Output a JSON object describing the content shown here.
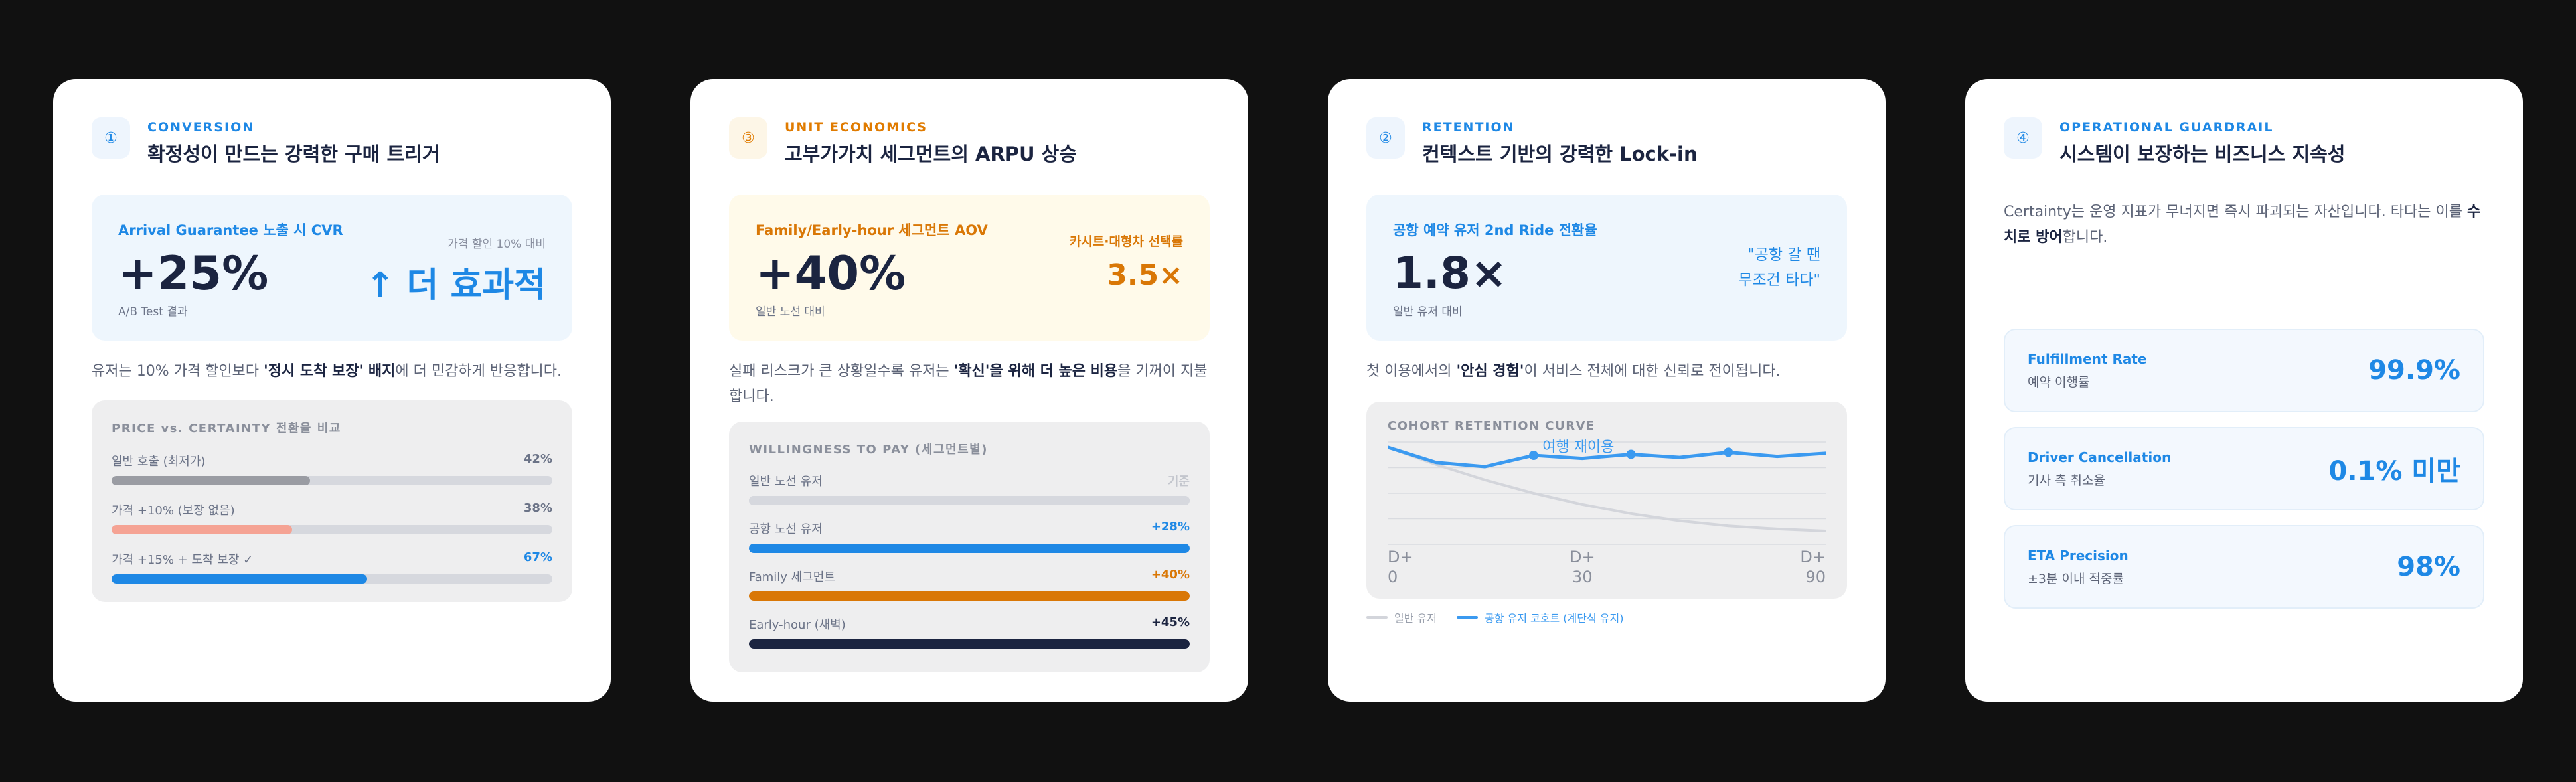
{
  "card1": {
    "badge": "①",
    "kicker": "CONVERSION",
    "title": "확정성이 만드는 강력한 구매 트리거",
    "hero": {
      "label": "Arrival Guarantee 노출 시 CVR",
      "value": "+25%",
      "sub": "A/B Test 결과",
      "compare_label": "가격 할인 10% 대비",
      "compare_value": "↑ 더 효과적"
    },
    "desc_a": "유저는 10% 가격 할인보다 ",
    "desc_b": "'정시 도착 보장' 배지",
    "desc_c": "에 더 민감하게 반응합니다.",
    "panel": {
      "title": "PRICE vs. CERTAINTY 전환율 비교",
      "bars": [
        {
          "label": "일반 호출 (최저가)",
          "value_text": "42%",
          "fill": 0.45,
          "color": "#9a9ca3",
          "value_color": "#6b7387"
        },
        {
          "label": "가격 +10% (보장 없음)",
          "value_text": "38%",
          "fill": 0.41,
          "color": "#f5a394",
          "value_color": "#6b7387"
        },
        {
          "label": "가격 +15% + 도착 보장 ✓",
          "value_text": "67%",
          "fill": 0.58,
          "color": "#1e88e5",
          "value_color": "#1e88e5"
        }
      ]
    }
  },
  "card2": {
    "badge": "③",
    "kicker": "UNIT ECONOMICS",
    "title": "고부가가치 세그먼트의 ARPU 상승",
    "hero": {
      "label": "Family/Early-hour 세그먼트 AOV",
      "value": "+40%",
      "sub": "일반 노선 대비",
      "compare_label": "카시트·대형차 선택률",
      "compare_value": "3.5×"
    },
    "desc_a": "실패 리스크가 큰 상황일수록 유저는 ",
    "desc_b": "'확신'을 위해 더 높은 비용",
    "desc_c": "을 기꺼이 지불합니다.",
    "panel": {
      "title": "WILLINGNESS TO PAY (세그먼트별)",
      "bars": [
        {
          "label": "일반 노선 유저",
          "value_text": "기준",
          "fill": 1.0,
          "color": "#d6d8de",
          "value_color": "#c3c6cd"
        },
        {
          "label": "공항 노선 유저",
          "value_text": "+28%",
          "fill": 1.0,
          "color": "#1e88e5",
          "value_color": "#1e88e5"
        },
        {
          "label": "Family 세그먼트",
          "value_text": "+40%",
          "fill": 1.0,
          "color": "#d97706",
          "value_color": "#d97706"
        },
        {
          "label": "Early-hour (새벽)",
          "value_text": "+45%",
          "fill": 1.0,
          "color": "#1b2440",
          "value_color": "#1b2440"
        }
      ]
    }
  },
  "card3": {
    "badge": "②",
    "kicker": "RETENTION",
    "title": "컨텍스트 기반의 강력한 Lock-in",
    "hero": {
      "label": "공항 예약 유저 2nd Ride 전환율",
      "value": "1.8×",
      "sub": "일반 유저 대비",
      "quote": "\"공항 갈 땐\n무조건 타다\""
    },
    "desc_a": "첫 이용에서의 ",
    "desc_b": "'안심 경험'",
    "desc_c": "이 서비스 전체에 대한 신뢰로 전이됩니다.",
    "chart_data": {
      "type": "line",
      "title": "COHORT RETENTION CURVE",
      "x": [
        0,
        10,
        20,
        30,
        40,
        50,
        60,
        70,
        80,
        90
      ],
      "x_tick_labels": [
        {
          "at": 0,
          "text": "D+\n0"
        },
        {
          "at": 40,
          "text": "D+\n30"
        },
        {
          "at": 90,
          "text": "D+\n90"
        }
      ],
      "annotation": "여행 재이용",
      "ylim": [
        0,
        100
      ],
      "series": [
        {
          "name": "일반 유저",
          "color": "#d3d5db",
          "values": [
            95,
            78,
            63,
            50,
            39,
            30,
            23,
            18,
            15,
            13
          ]
        },
        {
          "name": "공항 유저 코호트 (계단식 유지)",
          "color": "#3b9af0",
          "values": [
            95,
            80,
            76,
            87,
            84,
            88,
            85,
            90,
            86,
            89
          ]
        }
      ],
      "markers": [
        3,
        5,
        7
      ],
      "grid": true,
      "legend": "bottom-left"
    }
  },
  "card4": {
    "badge": "④",
    "kicker": "OPERATIONAL GUARDRAIL",
    "title": "시스템이 보장하는 비즈니스 지속성",
    "desc_a": "Certainty는 운영 지표가 무너지면 즉시 파괴되는 자산입니다. 타다는 이를 ",
    "desc_b": "수치로 방어",
    "desc_c": "합니다.",
    "kpis": [
      {
        "name": "Fulfillment Rate",
        "sub": "예약 이행률",
        "value": "99.9%"
      },
      {
        "name": "Driver Cancellation",
        "sub": "기사 측 취소율",
        "value": "0.1% 미만"
      },
      {
        "name": "ETA Precision",
        "sub": "±3분 이내 적중률",
        "value": "98%"
      }
    ]
  }
}
